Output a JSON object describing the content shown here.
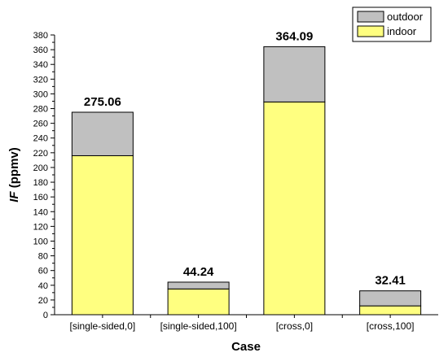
{
  "chart_data": {
    "type": "bar",
    "stacked": true,
    "categories": [
      "[single-sided,0]",
      "[single-sided,100]",
      "[cross,0]",
      "[cross,100]"
    ],
    "series": [
      {
        "name": "indoor",
        "values": [
          216,
          35,
          289,
          12
        ],
        "color": "#ffff80"
      },
      {
        "name": "outdoor",
        "values": [
          59.06,
          9.24,
          75.09,
          20.41
        ],
        "color": "#c0c0c0"
      }
    ],
    "totals": [
      275.06,
      44.24,
      364.09,
      32.41
    ],
    "total_labels": [
      "275.06",
      "44.24",
      "364.09",
      "32.41"
    ],
    "xlabel": "Case",
    "ylabel_italic": "IF",
    "ylabel_rest": " (ppmv)",
    "ylim": [
      0,
      380
    ],
    "yticks": [
      0,
      20,
      40,
      60,
      80,
      100,
      120,
      140,
      160,
      180,
      200,
      220,
      240,
      260,
      280,
      300,
      320,
      340,
      360,
      380
    ],
    "grid": false,
    "legend": {
      "placement": "top-right",
      "entries": [
        "outdoor",
        "indoor"
      ]
    }
  }
}
